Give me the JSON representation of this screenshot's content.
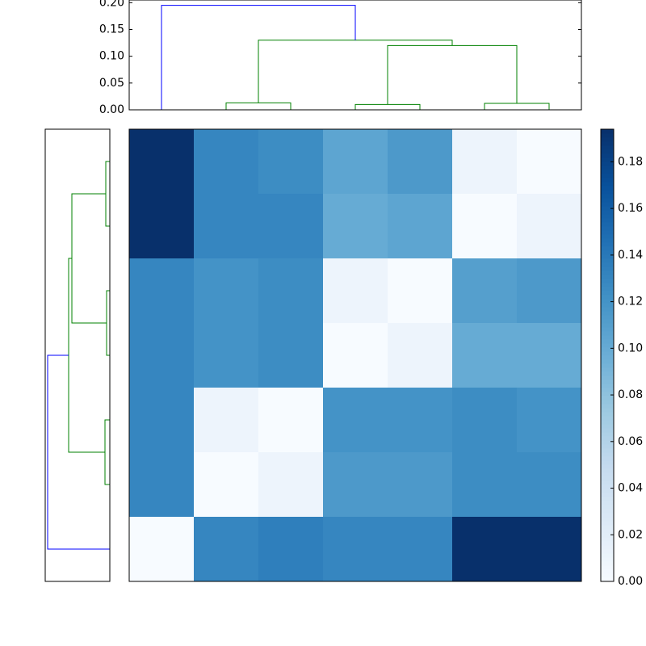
{
  "chart_data": {
    "type": "heatmap",
    "colormap": "Blues",
    "values": [
      [
        0.194,
        0.13,
        0.125,
        0.105,
        0.115,
        0.01,
        0.0
      ],
      [
        0.194,
        0.13,
        0.13,
        0.1,
        0.105,
        0.0,
        0.01
      ],
      [
        0.13,
        0.12,
        0.125,
        0.01,
        0.0,
        0.11,
        0.115
      ],
      [
        0.13,
        0.12,
        0.125,
        0.0,
        0.01,
        0.1,
        0.1
      ],
      [
        0.13,
        0.01,
        0.0,
        0.12,
        0.12,
        0.125,
        0.12
      ],
      [
        0.13,
        0.0,
        0.01,
        0.115,
        0.115,
        0.125,
        0.125
      ],
      [
        0.0,
        0.13,
        0.135,
        0.13,
        0.13,
        0.194,
        0.194
      ]
    ],
    "clim": [
      0,
      0.194
    ],
    "colorbar_ticks": [
      {
        "value": 0,
        "label": "0.00"
      },
      {
        "value": 0.02,
        "label": "0.02"
      },
      {
        "value": 0.04,
        "label": "0.04"
      },
      {
        "value": 0.06,
        "label": "0.06"
      },
      {
        "value": 0.08,
        "label": "0.08"
      },
      {
        "value": 0.1,
        "label": "0.10"
      },
      {
        "value": 0.12,
        "label": "0.12"
      },
      {
        "value": 0.14,
        "label": "0.14"
      },
      {
        "value": 0.16,
        "label": "0.16"
      },
      {
        "value": 0.18,
        "label": "0.18"
      }
    ],
    "top_dendrogram": {
      "ylim": [
        0,
        0.205
      ],
      "yticks": [
        {
          "value": 0,
          "label": "0.00"
        },
        {
          "value": 0.05,
          "label": "0.05"
        },
        {
          "value": 0.1,
          "label": "0.10"
        },
        {
          "value": 0.15,
          "label": "0.15"
        },
        {
          "value": 0.2,
          "label": "0.20"
        }
      ],
      "links": [
        {
          "x": [
            1,
            1,
            2,
            2
          ],
          "y": [
            0,
            0.013,
            0.013,
            0
          ],
          "color": "#008000"
        },
        {
          "x": [
            3,
            3,
            4,
            4
          ],
          "y": [
            0,
            0.01,
            0.01,
            0
          ],
          "color": "#008000"
        },
        {
          "x": [
            5,
            5,
            6,
            6
          ],
          "y": [
            0,
            0.012,
            0.012,
            0
          ],
          "color": "#008000"
        },
        {
          "x": [
            3.5,
            3.5,
            5.5,
            5.5
          ],
          "y": [
            0.01,
            0.12,
            0.12,
            0.012
          ],
          "color": "#008000"
        },
        {
          "x": [
            1.5,
            1.5,
            4.5,
            4.5
          ],
          "y": [
            0.013,
            0.13,
            0.13,
            0.12
          ],
          "color": "#008000"
        },
        {
          "x": [
            0,
            0,
            3,
            3
          ],
          "y": [
            0,
            0.195,
            0.195,
            0.13
          ],
          "color": "#0000ff"
        }
      ]
    },
    "left_dendrogram": {
      "xlim": [
        0.2,
        0
      ],
      "links": [
        {
          "x": [
            0,
            0,
            1,
            1
          ],
          "y": [
            0,
            0.0125,
            0.0125,
            0
          ],
          "color": "#008000"
        },
        {
          "x": [
            2,
            2,
            3,
            3
          ],
          "y": [
            0,
            0.01,
            0.01,
            0
          ],
          "color": "#008000"
        },
        {
          "x": [
            4,
            4,
            5,
            5
          ],
          "y": [
            0,
            0.015,
            0.015,
            0
          ],
          "color": "#008000"
        },
        {
          "x": [
            0.5,
            0.5,
            2.5,
            2.5
          ],
          "y": [
            0.0125,
            0.1175,
            0.1175,
            0.01
          ],
          "color": "#008000"
        },
        {
          "x": [
            1.5,
            1.5,
            4.5,
            4.5
          ],
          "y": [
            0.1175,
            0.1275,
            0.1275,
            0.015
          ],
          "color": "#008000"
        },
        {
          "x": [
            3,
            3,
            6,
            6
          ],
          "y": [
            0.1275,
            0.1925,
            0.1925,
            0
          ],
          "color": "#0000ff"
        }
      ]
    }
  }
}
